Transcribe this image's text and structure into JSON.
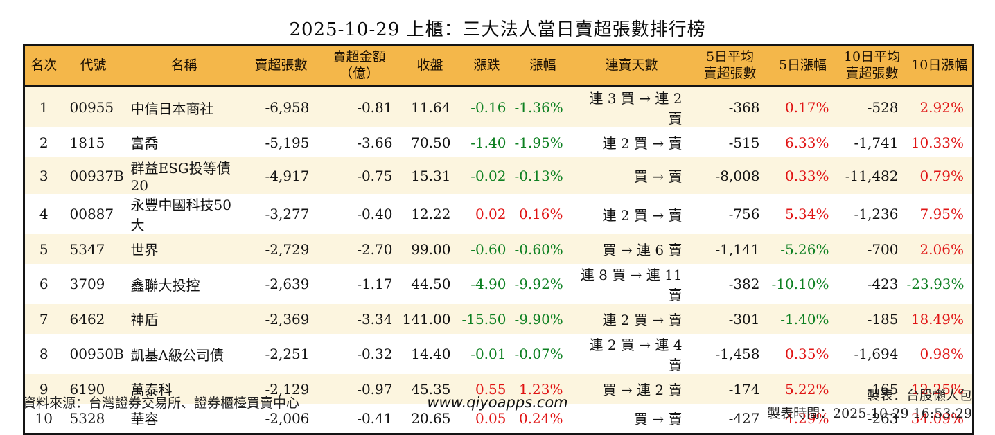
{
  "title": "2025-10-29 上櫃：三大法人當日賣超張數排行榜",
  "colors": {
    "up": "#e01414",
    "down": "#0e8022",
    "header_bg": "#f4b74a",
    "row_alt_bg": "#fcf5df",
    "border": "#141414"
  },
  "chart_data": {
    "type": "table",
    "title": "2025-10-29 上櫃：三大法人當日賣超張數排行榜",
    "columns": [
      "名次",
      "代號",
      "名稱",
      "賣超張數",
      "賣超金額\n（億）",
      "收盤",
      "漲跌",
      "漲幅",
      "連賣天數",
      "5日平均\n賣超張數",
      "5日漲幅",
      "10日平均\n賣超張數",
      "10日漲幅"
    ],
    "rows": [
      {
        "rank": "1",
        "code": "00955",
        "name": "中信日本商社",
        "sell_volume": "-6,958",
        "sell_amount": "-0.81",
        "close": "11.64",
        "change": "-0.16",
        "change_color": "down",
        "change_pct": "-1.36%",
        "change_pct_color": "down",
        "streak": "連 3 買 → 連 2 賣",
        "avg5": "-368",
        "pct5": "0.17%",
        "pct5_color": "up",
        "avg10": "-528",
        "pct10": "2.92%",
        "pct10_color": "up"
      },
      {
        "rank": "2",
        "code": "1815",
        "name": "富喬",
        "sell_volume": "-5,195",
        "sell_amount": "-3.66",
        "close": "70.50",
        "change": "-1.40",
        "change_color": "down",
        "change_pct": "-1.95%",
        "change_pct_color": "down",
        "streak": "連 2 買 → 賣",
        "avg5": "-515",
        "pct5": "6.33%",
        "pct5_color": "up",
        "avg10": "-1,741",
        "pct10": "10.33%",
        "pct10_color": "up"
      },
      {
        "rank": "3",
        "code": "00937B",
        "name": "群益ESG投等債20",
        "sell_volume": "-4,917",
        "sell_amount": "-0.75",
        "close": "15.31",
        "change": "-0.02",
        "change_color": "down",
        "change_pct": "-0.13%",
        "change_pct_color": "down",
        "streak": "買 → 賣",
        "avg5": "-8,008",
        "pct5": "0.33%",
        "pct5_color": "up",
        "avg10": "-11,482",
        "pct10": "0.79%",
        "pct10_color": "up"
      },
      {
        "rank": "4",
        "code": "00887",
        "name": "永豐中國科技50大",
        "sell_volume": "-3,277",
        "sell_amount": "-0.40",
        "close": "12.22",
        "change": "0.02",
        "change_color": "up",
        "change_pct": "0.16%",
        "change_pct_color": "up",
        "streak": "連 2 買 → 賣",
        "avg5": "-756",
        "pct5": "5.34%",
        "pct5_color": "up",
        "avg10": "-1,236",
        "pct10": "7.95%",
        "pct10_color": "up"
      },
      {
        "rank": "5",
        "code": "5347",
        "name": "世界",
        "sell_volume": "-2,729",
        "sell_amount": "-2.70",
        "close": "99.00",
        "change": "-0.60",
        "change_color": "down",
        "change_pct": "-0.60%",
        "change_pct_color": "down",
        "streak": "買 → 連 6 賣",
        "avg5": "-1,141",
        "pct5": "-5.26%",
        "pct5_color": "down",
        "avg10": "-700",
        "pct10": "2.06%",
        "pct10_color": "up"
      },
      {
        "rank": "6",
        "code": "3709",
        "name": "鑫聯大投控",
        "sell_volume": "-2,639",
        "sell_amount": "-1.17",
        "close": "44.50",
        "change": "-4.90",
        "change_color": "down",
        "change_pct": "-9.92%",
        "change_pct_color": "down",
        "streak": "連 8 買 → 連 11 賣",
        "avg5": "-382",
        "pct5": "-10.10%",
        "pct5_color": "down",
        "avg10": "-423",
        "pct10": "-23.93%",
        "pct10_color": "down"
      },
      {
        "rank": "7",
        "code": "6462",
        "name": "神盾",
        "sell_volume": "-2,369",
        "sell_amount": "-3.34",
        "close": "141.00",
        "change": "-15.50",
        "change_color": "down",
        "change_pct": "-9.90%",
        "change_pct_color": "down",
        "streak": "連 2 買 → 賣",
        "avg5": "-301",
        "pct5": "-1.40%",
        "pct5_color": "down",
        "avg10": "-185",
        "pct10": "18.49%",
        "pct10_color": "up"
      },
      {
        "rank": "8",
        "code": "00950B",
        "name": "凱基A級公司債",
        "sell_volume": "-2,251",
        "sell_amount": "-0.32",
        "close": "14.40",
        "change": "-0.01",
        "change_color": "down",
        "change_pct": "-0.07%",
        "change_pct_color": "down",
        "streak": "連 2 買 → 連 4 賣",
        "avg5": "-1,458",
        "pct5": "0.35%",
        "pct5_color": "up",
        "avg10": "-1,694",
        "pct10": "0.98%",
        "pct10_color": "up"
      },
      {
        "rank": "9",
        "code": "6190",
        "name": "萬泰科",
        "sell_volume": "-2,129",
        "sell_amount": "-0.97",
        "close": "45.35",
        "change": "0.55",
        "change_color": "up",
        "change_pct": "1.23%",
        "change_pct_color": "up",
        "streak": "買 → 連 2 賣",
        "avg5": "-174",
        "pct5": "5.22%",
        "pct5_color": "up",
        "avg10": "-165",
        "pct10": "12.25%",
        "pct10_color": "up"
      },
      {
        "rank": "10",
        "code": "5328",
        "name": "華容",
        "sell_volume": "-2,006",
        "sell_amount": "-0.41",
        "close": "20.65",
        "change": "0.05",
        "change_color": "up",
        "change_pct": "0.24%",
        "change_pct_color": "up",
        "streak": "買 → 賣",
        "avg5": "-427",
        "pct5": "4.29%",
        "pct5_color": "up",
        "avg10": "-263",
        "pct10": "34.09%",
        "pct10_color": "up"
      }
    ]
  },
  "footer": {
    "source": "資料來源：台灣證券交易所、證券櫃檯買賣中心",
    "site": "www.qiyoapps.com",
    "maker": "製表：台股懶人包",
    "timestamp": "製表時間：2025-10-29 16:53:29"
  }
}
